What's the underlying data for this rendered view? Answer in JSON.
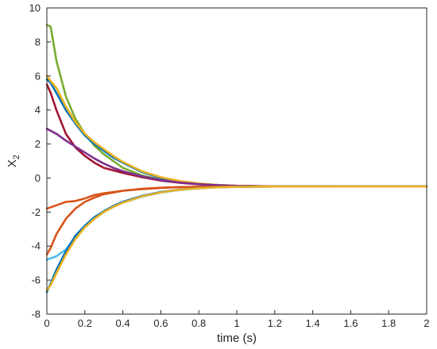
{
  "chart_data": {
    "type": "line",
    "xlabel": "time (s)",
    "ylabel": "X",
    "ylabel_subscript": "2",
    "xlim": [
      0,
      2
    ],
    "ylim": [
      -8,
      10
    ],
    "x_ticks": [
      "0",
      "0.2",
      "0.4",
      "0.6",
      "0.8",
      "1",
      "1.2",
      "1.4",
      "1.6",
      "1.8",
      "2"
    ],
    "y_ticks": [
      "-8",
      "-6",
      "-4",
      "-2",
      "0",
      "2",
      "4",
      "6",
      "8",
      "10"
    ],
    "grid": false,
    "series": [
      {
        "color": "#77AC30",
        "x": [
          0,
          0.02,
          0.05,
          0.1,
          0.15,
          0.2,
          0.25,
          0.3,
          0.35,
          0.4,
          0.5,
          0.6,
          0.7,
          0.8,
          0.9,
          1.0,
          1.2,
          1.5,
          2.0
        ],
        "y": [
          9.0,
          8.9,
          6.9,
          4.8,
          3.5,
          2.6,
          1.9,
          1.4,
          1.0,
          0.6,
          0.15,
          -0.1,
          -0.25,
          -0.35,
          -0.42,
          -0.46,
          -0.49,
          -0.5,
          -0.5
        ]
      },
      {
        "color": "#0072BD",
        "x": [
          0,
          0.02,
          0.05,
          0.1,
          0.15,
          0.2,
          0.25,
          0.3,
          0.35,
          0.4,
          0.5,
          0.6,
          0.7,
          0.8,
          0.9,
          1.0,
          1.2,
          1.5,
          2.0
        ],
        "y": [
          5.8,
          5.6,
          5.0,
          4.0,
          3.2,
          2.5,
          2.0,
          1.6,
          1.2,
          0.9,
          0.35,
          0.0,
          -0.2,
          -0.33,
          -0.41,
          -0.46,
          -0.49,
          -0.5,
          -0.5
        ]
      },
      {
        "color": "#EDB120",
        "x": [
          0,
          0.02,
          0.05,
          0.1,
          0.15,
          0.2,
          0.25,
          0.3,
          0.35,
          0.4,
          0.5,
          0.6,
          0.7,
          0.8,
          0.9,
          1.0,
          1.2,
          1.5,
          2.0
        ],
        "y": [
          6.0,
          5.7,
          5.3,
          4.2,
          3.3,
          2.6,
          2.1,
          1.7,
          1.3,
          0.95,
          0.4,
          0.05,
          -0.18,
          -0.32,
          -0.41,
          -0.46,
          -0.49,
          -0.5,
          -0.5
        ]
      },
      {
        "color": "#A2142F",
        "x": [
          0,
          0.02,
          0.05,
          0.1,
          0.15,
          0.2,
          0.25,
          0.3,
          0.35,
          0.4,
          0.5,
          0.6,
          0.7,
          0.8,
          0.9,
          1.0,
          1.2,
          1.5,
          2.0
        ],
        "y": [
          5.5,
          5.0,
          4.0,
          2.6,
          1.8,
          1.3,
          0.9,
          0.6,
          0.45,
          0.3,
          0.05,
          -0.15,
          -0.28,
          -0.37,
          -0.43,
          -0.47,
          -0.49,
          -0.5,
          -0.5
        ]
      },
      {
        "color": "#7E2F8E",
        "x": [
          0,
          0.05,
          0.1,
          0.15,
          0.2,
          0.25,
          0.3,
          0.35,
          0.4,
          0.5,
          0.6,
          0.7,
          0.8,
          0.9,
          1.0,
          1.2,
          1.5,
          2.0
        ],
        "y": [
          2.9,
          2.6,
          2.2,
          1.85,
          1.5,
          1.15,
          0.85,
          0.6,
          0.4,
          0.1,
          -0.12,
          -0.27,
          -0.36,
          -0.42,
          -0.46,
          -0.49,
          -0.5,
          -0.5
        ]
      },
      {
        "color": "#D95319",
        "x": [
          0,
          0.05,
          0.1,
          0.15,
          0.2,
          0.25,
          0.3,
          0.4,
          0.5,
          0.6,
          0.7,
          0.8,
          1.0,
          1.2,
          1.5,
          2.0
        ],
        "y": [
          -1.8,
          -1.6,
          -1.4,
          -1.35,
          -1.2,
          -1.0,
          -0.9,
          -0.75,
          -0.65,
          -0.58,
          -0.54,
          -0.52,
          -0.5,
          -0.5,
          -0.5,
          -0.5
        ]
      },
      {
        "color": "#D95319",
        "x": [
          0,
          0.02,
          0.05,
          0.1,
          0.15,
          0.2,
          0.25,
          0.3,
          0.35,
          0.4,
          0.5,
          0.6,
          0.7,
          0.8,
          1.0,
          1.2,
          1.5,
          2.0
        ],
        "y": [
          -4.5,
          -4.1,
          -3.3,
          -2.4,
          -1.8,
          -1.4,
          -1.15,
          -0.95,
          -0.85,
          -0.75,
          -0.63,
          -0.57,
          -0.53,
          -0.51,
          -0.5,
          -0.5,
          -0.5,
          -0.5
        ]
      },
      {
        "color": "#4DBEEE",
        "x": [
          0,
          0.05,
          0.1,
          0.15,
          0.2,
          0.25,
          0.3,
          0.35,
          0.4,
          0.5,
          0.6,
          0.7,
          0.8,
          0.9,
          1.0,
          1.2,
          1.5,
          2.0
        ],
        "y": [
          -4.8,
          -4.6,
          -4.2,
          -3.5,
          -2.9,
          -2.4,
          -2.0,
          -1.7,
          -1.45,
          -1.1,
          -0.85,
          -0.7,
          -0.6,
          -0.55,
          -0.52,
          -0.5,
          -0.5,
          -0.5
        ]
      },
      {
        "color": "#0072BD",
        "x": [
          0,
          0.02,
          0.05,
          0.1,
          0.15,
          0.2,
          0.25,
          0.3,
          0.35,
          0.4,
          0.5,
          0.6,
          0.7,
          0.8,
          0.9,
          1.0,
          1.2,
          1.5,
          2.0
        ],
        "y": [
          -6.7,
          -6.2,
          -5.4,
          -4.3,
          -3.4,
          -2.8,
          -2.3,
          -1.95,
          -1.65,
          -1.4,
          -1.05,
          -0.82,
          -0.68,
          -0.59,
          -0.54,
          -0.52,
          -0.5,
          -0.5,
          -0.5
        ]
      },
      {
        "color": "#EDB120",
        "x": [
          0,
          0.02,
          0.05,
          0.1,
          0.15,
          0.2,
          0.25,
          0.3,
          0.35,
          0.4,
          0.5,
          0.6,
          0.7,
          0.8,
          0.9,
          1.0,
          1.2,
          1.5,
          2.0
        ],
        "y": [
          -6.6,
          -6.3,
          -5.6,
          -4.5,
          -3.6,
          -2.9,
          -2.4,
          -2.0,
          -1.7,
          -1.45,
          -1.08,
          -0.84,
          -0.69,
          -0.6,
          -0.55,
          -0.52,
          -0.5,
          -0.5,
          -0.5
        ]
      }
    ]
  }
}
